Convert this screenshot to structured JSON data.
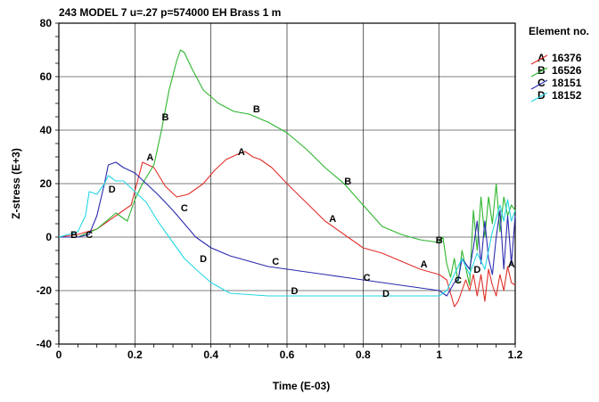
{
  "chart_data": {
    "type": "line",
    "title": "243 MODEL 7 u=.27 p=574000 EH Brass 1 m",
    "xlabel": "Time (E-03)",
    "ylabel": "Z-stress (E+3)",
    "xlim": [
      0,
      1.2
    ],
    "ylim": [
      -40,
      80
    ],
    "x_ticks": [
      0,
      0.2,
      0.4,
      0.6,
      0.8,
      1,
      1.2
    ],
    "x_tick_labels": [
      "0",
      "0.2",
      "0.4",
      "0.6",
      "0.8",
      "1",
      "1.2"
    ],
    "y_ticks": [
      -40,
      -20,
      0,
      20,
      40,
      60,
      80
    ],
    "y_tick_labels": [
      "-40",
      "-20",
      "0",
      "20",
      "40",
      "60",
      "80"
    ],
    "grid": true,
    "legend_title": "Element no.",
    "legend_position": "right",
    "series": [
      {
        "marker": "A",
        "name": "16376",
        "color": "#e0302a",
        "x": [
          0,
          0.05,
          0.1,
          0.15,
          0.19,
          0.22,
          0.25,
          0.28,
          0.31,
          0.34,
          0.38,
          0.41,
          0.44,
          0.47,
          0.49,
          0.51,
          0.53,
          0.56,
          0.6,
          0.65,
          0.7,
          0.75,
          0.8,
          0.85,
          0.9,
          0.95,
          1.0,
          1.02,
          1.04,
          1.05,
          1.07,
          1.08,
          1.09,
          1.1,
          1.11,
          1.12,
          1.13,
          1.14,
          1.15,
          1.16,
          1.17,
          1.18,
          1.19,
          1.2
        ],
        "y": [
          0,
          1,
          3,
          8,
          12,
          28,
          26,
          19,
          15,
          16,
          20,
          25,
          29,
          31,
          32,
          30,
          29,
          26,
          20,
          13,
          6,
          1,
          -4,
          -6,
          -9,
          -12,
          -14,
          -16,
          -26,
          -24,
          -16,
          -20,
          -14,
          -22,
          -14,
          -24,
          -12,
          -18,
          -22,
          -14,
          -20,
          -11,
          -17,
          -18
        ]
      },
      {
        "marker": "B",
        "name": "16526",
        "color": "#2db52d",
        "x": [
          0,
          0.05,
          0.1,
          0.15,
          0.18,
          0.2,
          0.22,
          0.25,
          0.27,
          0.29,
          0.31,
          0.32,
          0.33,
          0.35,
          0.38,
          0.42,
          0.46,
          0.5,
          0.55,
          0.6,
          0.65,
          0.7,
          0.75,
          0.8,
          0.85,
          0.9,
          0.95,
          1.0,
          1.01,
          1.02,
          1.03,
          1.04,
          1.05,
          1.06,
          1.08,
          1.09,
          1.1,
          1.11,
          1.12,
          1.13,
          1.14,
          1.15,
          1.16,
          1.17,
          1.18,
          1.19,
          1.2
        ],
        "y": [
          0,
          0,
          3,
          9,
          6,
          14,
          20,
          27,
          40,
          55,
          66,
          70,
          69,
          63,
          55,
          50,
          47,
          46,
          43,
          39,
          33,
          26,
          20,
          12,
          4,
          1,
          -1,
          -2,
          0,
          -10,
          -15,
          -8,
          -17,
          -5,
          -18,
          10,
          -5,
          15,
          0,
          15,
          5,
          20,
          2,
          15,
          8,
          12,
          10
        ]
      },
      {
        "marker": "C",
        "name": "18151",
        "color": "#2a2ab0",
        "x": [
          0,
          0.05,
          0.08,
          0.1,
          0.12,
          0.13,
          0.15,
          0.17,
          0.2,
          0.23,
          0.26,
          0.3,
          0.33,
          0.36,
          0.4,
          0.45,
          0.5,
          0.55,
          0.6,
          0.65,
          0.7,
          0.75,
          0.8,
          0.85,
          0.9,
          0.95,
          1.0,
          1.02,
          1.04,
          1.05,
          1.06,
          1.08,
          1.09,
          1.1,
          1.11,
          1.12,
          1.13,
          1.14,
          1.15,
          1.16,
          1.17,
          1.18,
          1.19,
          1.2
        ],
        "y": [
          0,
          0,
          1,
          8,
          20,
          27,
          28,
          26,
          24,
          20,
          16,
          10,
          5,
          0,
          -4,
          -7,
          -9,
          -11,
          -12,
          -13,
          -14,
          -15,
          -16,
          -17,
          -18,
          -19,
          -20,
          -22,
          -17,
          -16,
          -8,
          -12,
          -4,
          6,
          -10,
          6,
          -8,
          -14,
          0,
          10,
          -12,
          8,
          -10,
          8
        ]
      },
      {
        "marker": "D",
        "name": "18152",
        "color": "#25d7e5",
        "x": [
          0,
          0.05,
          0.07,
          0.08,
          0.1,
          0.12,
          0.13,
          0.15,
          0.17,
          0.2,
          0.23,
          0.26,
          0.3,
          0.33,
          0.36,
          0.4,
          0.45,
          0.5,
          0.55,
          0.6,
          0.7,
          0.8,
          0.9,
          1.0,
          1.02,
          1.04,
          1.06,
          1.08,
          1.1,
          1.12,
          1.14,
          1.16,
          1.17,
          1.18,
          1.19,
          1.2
        ],
        "y": [
          0,
          2,
          8,
          17,
          16,
          20,
          23,
          21,
          21,
          17,
          13,
          6,
          -2,
          -8,
          -12,
          -17,
          -21,
          -21.5,
          -22,
          -22,
          -22,
          -22,
          -22,
          -22,
          -20,
          -14,
          -8,
          -14,
          -6,
          -12,
          2,
          12,
          6,
          14,
          6,
          10
        ]
      }
    ],
    "point_labels": [
      {
        "marker": "A",
        "x": [
          0.24,
          0.48,
          0.72,
          0.96,
          1.19
        ],
        "y": [
          30,
          32,
          7,
          -10,
          -10
        ]
      },
      {
        "marker": "B",
        "x": [
          0.04,
          0.28,
          0.52,
          0.76,
          1.0
        ],
        "y": [
          1,
          45,
          48,
          21,
          -1
        ]
      },
      {
        "marker": "C",
        "x": [
          0.08,
          0.33,
          0.57,
          0.81,
          1.05
        ],
        "y": [
          1,
          11,
          -9,
          -15,
          -16
        ]
      },
      {
        "marker": "D",
        "x": [
          0.14,
          0.38,
          0.62,
          0.86,
          1.1
        ],
        "y": [
          18,
          -8,
          -20,
          -21,
          -12
        ]
      }
    ]
  }
}
